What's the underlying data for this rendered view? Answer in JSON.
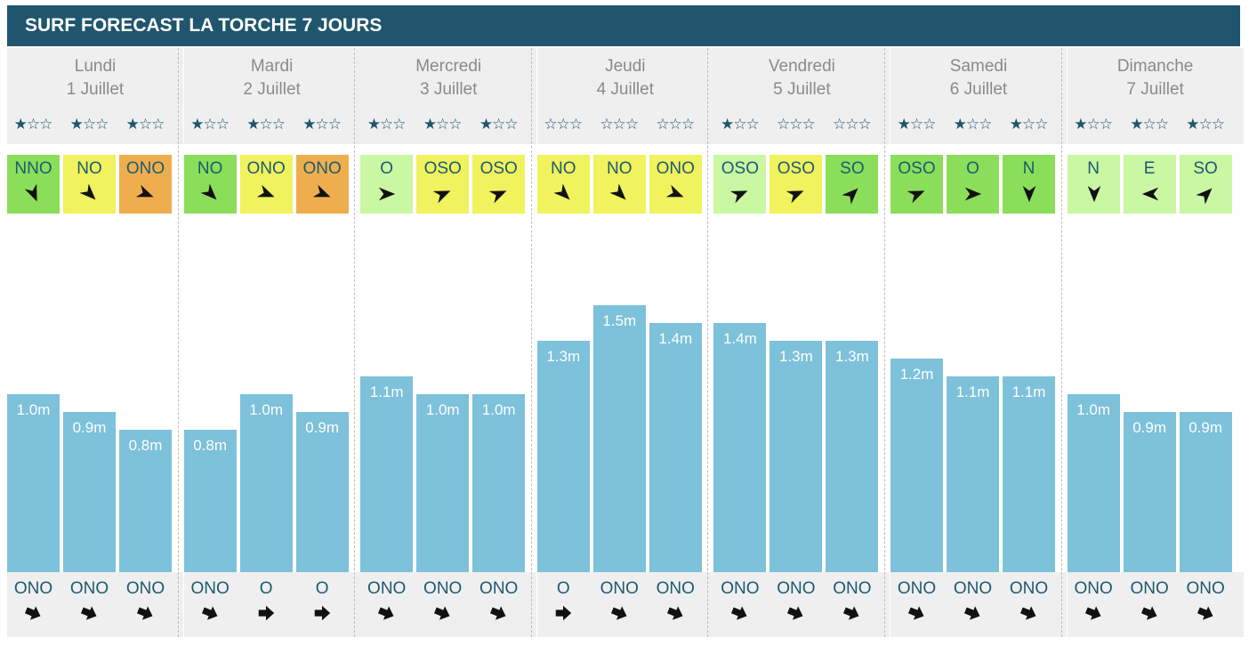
{
  "title": "SURF FORECAST LA TORCHE 7 JOURS",
  "colors": {
    "header_bg": "#20566d",
    "bar": "#7dc1da",
    "star": "#20566d",
    "wind_green": "#8bde5a",
    "wind_light_green": "#c9f7a2",
    "wind_yellow": "#f0f25e",
    "wind_orange": "#efae4d"
  },
  "icons": {
    "star_filled": "★",
    "star_empty": "☆",
    "wind_arrow": "wind-direction-arrow-icon",
    "swell_arrow": "swell-direction-arrow-icon"
  },
  "chart_data": {
    "type": "bar",
    "unit": "m",
    "days": [
      {
        "name": "Lundi",
        "date": "1 Juillet",
        "slots": [
          {
            "stars": "★☆☆",
            "wind": "NNO",
            "wind_color": "#8bde5a",
            "wind_deg": 157,
            "height": 1.0,
            "height_label": "1.0m",
            "swell": "ONO",
            "swell_deg": 112
          },
          {
            "stars": "★☆☆",
            "wind": "NO",
            "wind_color": "#f0f25e",
            "wind_deg": 135,
            "height": 0.9,
            "height_label": "0.9m",
            "swell": "ONO",
            "swell_deg": 112
          },
          {
            "stars": "★☆☆",
            "wind": "ONO",
            "wind_color": "#efae4d",
            "wind_deg": 112,
            "height": 0.8,
            "height_label": "0.8m",
            "swell": "ONO",
            "swell_deg": 112
          }
        ]
      },
      {
        "name": "Mardi",
        "date": "2 Juillet",
        "slots": [
          {
            "stars": "★☆☆",
            "wind": "NO",
            "wind_color": "#8bde5a",
            "wind_deg": 135,
            "height": 0.8,
            "height_label": "0.8m",
            "swell": "ONO",
            "swell_deg": 112
          },
          {
            "stars": "★☆☆",
            "wind": "ONO",
            "wind_color": "#f0f25e",
            "wind_deg": 112,
            "height": 1.0,
            "height_label": "1.0m",
            "swell": "O",
            "swell_deg": 90
          },
          {
            "stars": "★☆☆",
            "wind": "ONO",
            "wind_color": "#efae4d",
            "wind_deg": 112,
            "height": 0.9,
            "height_label": "0.9m",
            "swell": "O",
            "swell_deg": 90
          }
        ]
      },
      {
        "name": "Mercredi",
        "date": "3 Juillet",
        "slots": [
          {
            "stars": "★☆☆",
            "wind": "O",
            "wind_color": "#c9f7a2",
            "wind_deg": 90,
            "height": 1.1,
            "height_label": "1.1m",
            "swell": "ONO",
            "swell_deg": 112
          },
          {
            "stars": "★☆☆",
            "wind": "OSO",
            "wind_color": "#f0f25e",
            "wind_deg": 67,
            "height": 1.0,
            "height_label": "1.0m",
            "swell": "ONO",
            "swell_deg": 112
          },
          {
            "stars": "★☆☆",
            "wind": "OSO",
            "wind_color": "#f0f25e",
            "wind_deg": 67,
            "height": 1.0,
            "height_label": "1.0m",
            "swell": "ONO",
            "swell_deg": 112
          }
        ]
      },
      {
        "name": "Jeudi",
        "date": "4 Juillet",
        "slots": [
          {
            "stars": "☆☆☆",
            "wind": "NO",
            "wind_color": "#f0f25e",
            "wind_deg": 135,
            "height": 1.3,
            "height_label": "1.3m",
            "swell": "O",
            "swell_deg": 90
          },
          {
            "stars": "☆☆☆",
            "wind": "NO",
            "wind_color": "#f0f25e",
            "wind_deg": 135,
            "height": 1.5,
            "height_label": "1.5m",
            "swell": "ONO",
            "swell_deg": 112
          },
          {
            "stars": "☆☆☆",
            "wind": "ONO",
            "wind_color": "#f0f25e",
            "wind_deg": 112,
            "height": 1.4,
            "height_label": "1.4m",
            "swell": "ONO",
            "swell_deg": 112
          }
        ]
      },
      {
        "name": "Vendredi",
        "date": "5 Juillet",
        "slots": [
          {
            "stars": "★☆☆",
            "wind": "OSO",
            "wind_color": "#c9f7a2",
            "wind_deg": 67,
            "height": 1.4,
            "height_label": "1.4m",
            "swell": "ONO",
            "swell_deg": 112
          },
          {
            "stars": "☆☆☆",
            "wind": "OSO",
            "wind_color": "#f0f25e",
            "wind_deg": 67,
            "height": 1.3,
            "height_label": "1.3m",
            "swell": "ONO",
            "swell_deg": 112
          },
          {
            "stars": "☆☆☆",
            "wind": "SO",
            "wind_color": "#8bde5a",
            "wind_deg": 45,
            "height": 1.3,
            "height_label": "1.3m",
            "swell": "ONO",
            "swell_deg": 112
          }
        ]
      },
      {
        "name": "Samedi",
        "date": "6 Juillet",
        "slots": [
          {
            "stars": "★☆☆",
            "wind": "OSO",
            "wind_color": "#8bde5a",
            "wind_deg": 67,
            "height": 1.2,
            "height_label": "1.2m",
            "swell": "ONO",
            "swell_deg": 112
          },
          {
            "stars": "★☆☆",
            "wind": "O",
            "wind_color": "#8bde5a",
            "wind_deg": 90,
            "height": 1.1,
            "height_label": "1.1m",
            "swell": "ONO",
            "swell_deg": 112
          },
          {
            "stars": "★☆☆",
            "wind": "N",
            "wind_color": "#8bde5a",
            "wind_deg": 180,
            "height": 1.1,
            "height_label": "1.1m",
            "swell": "ONO",
            "swell_deg": 112
          }
        ]
      },
      {
        "name": "Dimanche",
        "date": "7 Juillet",
        "slots": [
          {
            "stars": "★☆☆",
            "wind": "N",
            "wind_color": "#c9f7a2",
            "wind_deg": 180,
            "height": 1.0,
            "height_label": "1.0m",
            "swell": "ONO",
            "swell_deg": 112
          },
          {
            "stars": "★☆☆",
            "wind": "E",
            "wind_color": "#c9f7a2",
            "wind_deg": 270,
            "height": 0.9,
            "height_label": "0.9m",
            "swell": "ONO",
            "swell_deg": 112
          },
          {
            "stars": "★☆☆",
            "wind": "SO",
            "wind_color": "#c9f7a2",
            "wind_deg": 45,
            "height": 0.9,
            "height_label": "0.9m",
            "swell": "ONO",
            "swell_deg": 112
          }
        ]
      }
    ]
  }
}
